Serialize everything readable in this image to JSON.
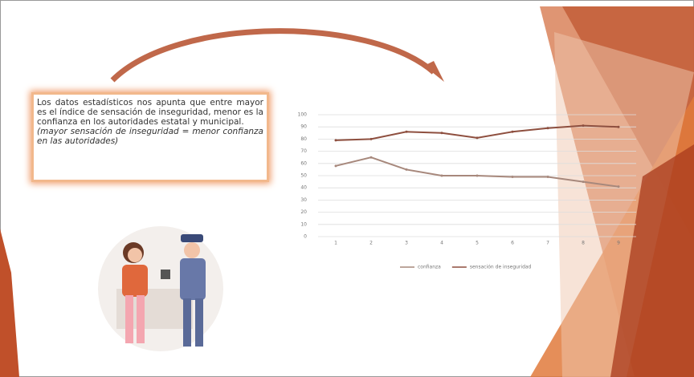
{
  "slide": {
    "text": [
      "Los datos estadísticos nos apunta que entre mayor es el índice de sensación de inseguridad, menor es la confianza en los autoridades estatal y municipal.",
      "(mayor sensación de inseguridad = menor confianza en las autoridades)"
    ]
  },
  "chart_data": {
    "type": "line",
    "categories": [
      "1",
      "2",
      "3",
      "4",
      "5",
      "6",
      "7",
      "8",
      "9"
    ],
    "series": [
      {
        "name": "confianza",
        "color": "#a7887c",
        "values": [
          58,
          65,
          55,
          50,
          50,
          49,
          49,
          45,
          41
        ]
      },
      {
        "name": "sensación de inseguridad",
        "color": "#8e4f3f",
        "values": [
          79,
          80,
          86,
          85,
          81,
          86,
          89,
          91,
          90
        ]
      }
    ],
    "ylim": [
      0,
      100
    ],
    "yticks": [
      0,
      10,
      20,
      30,
      40,
      50,
      60,
      70,
      80,
      90,
      100
    ],
    "grid": true,
    "legend": "bottom"
  }
}
